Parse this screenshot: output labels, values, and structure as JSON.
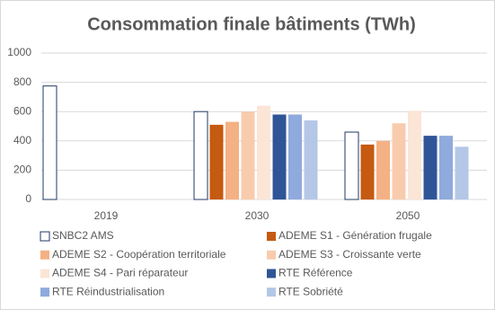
{
  "chart_data": {
    "type": "bar",
    "title": "Consommation finale bâtiments (TWh)",
    "categories": [
      "2019",
      "2030",
      "2050"
    ],
    "series": [
      {
        "name": "SNBC2 AMS",
        "color": "#ffffff",
        "values": [
          775,
          600,
          460
        ]
      },
      {
        "name": "ADEME S1 - Génération frugale",
        "color": "#c55a11",
        "values": [
          null,
          510,
          375
        ]
      },
      {
        "name": "ADEME S2 - Coopération territoriale",
        "color": "#f4b183",
        "values": [
          null,
          530,
          400
        ]
      },
      {
        "name": "ADEME S3 - Croissante verte",
        "color": "#f8cbad",
        "values": [
          null,
          600,
          520
        ]
      },
      {
        "name": "ADEME S4 - Pari réparateur",
        "color": "#fbe5d6",
        "values": [
          null,
          640,
          605
        ]
      },
      {
        "name": "RTE Référence",
        "color": "#2f5597",
        "values": [
          null,
          580,
          435
        ]
      },
      {
        "name": "RTE Réindustrialisation",
        "color": "#8faadc",
        "values": [
          null,
          580,
          435
        ]
      },
      {
        "name": "RTE Sobriété",
        "color": "#b4c7e7",
        "values": [
          null,
          540,
          360
        ]
      }
    ],
    "ylim": [
      0,
      1000
    ],
    "yticks": [
      0,
      200,
      400,
      600,
      800,
      1000
    ],
    "grid": true,
    "legend": "bottom"
  }
}
